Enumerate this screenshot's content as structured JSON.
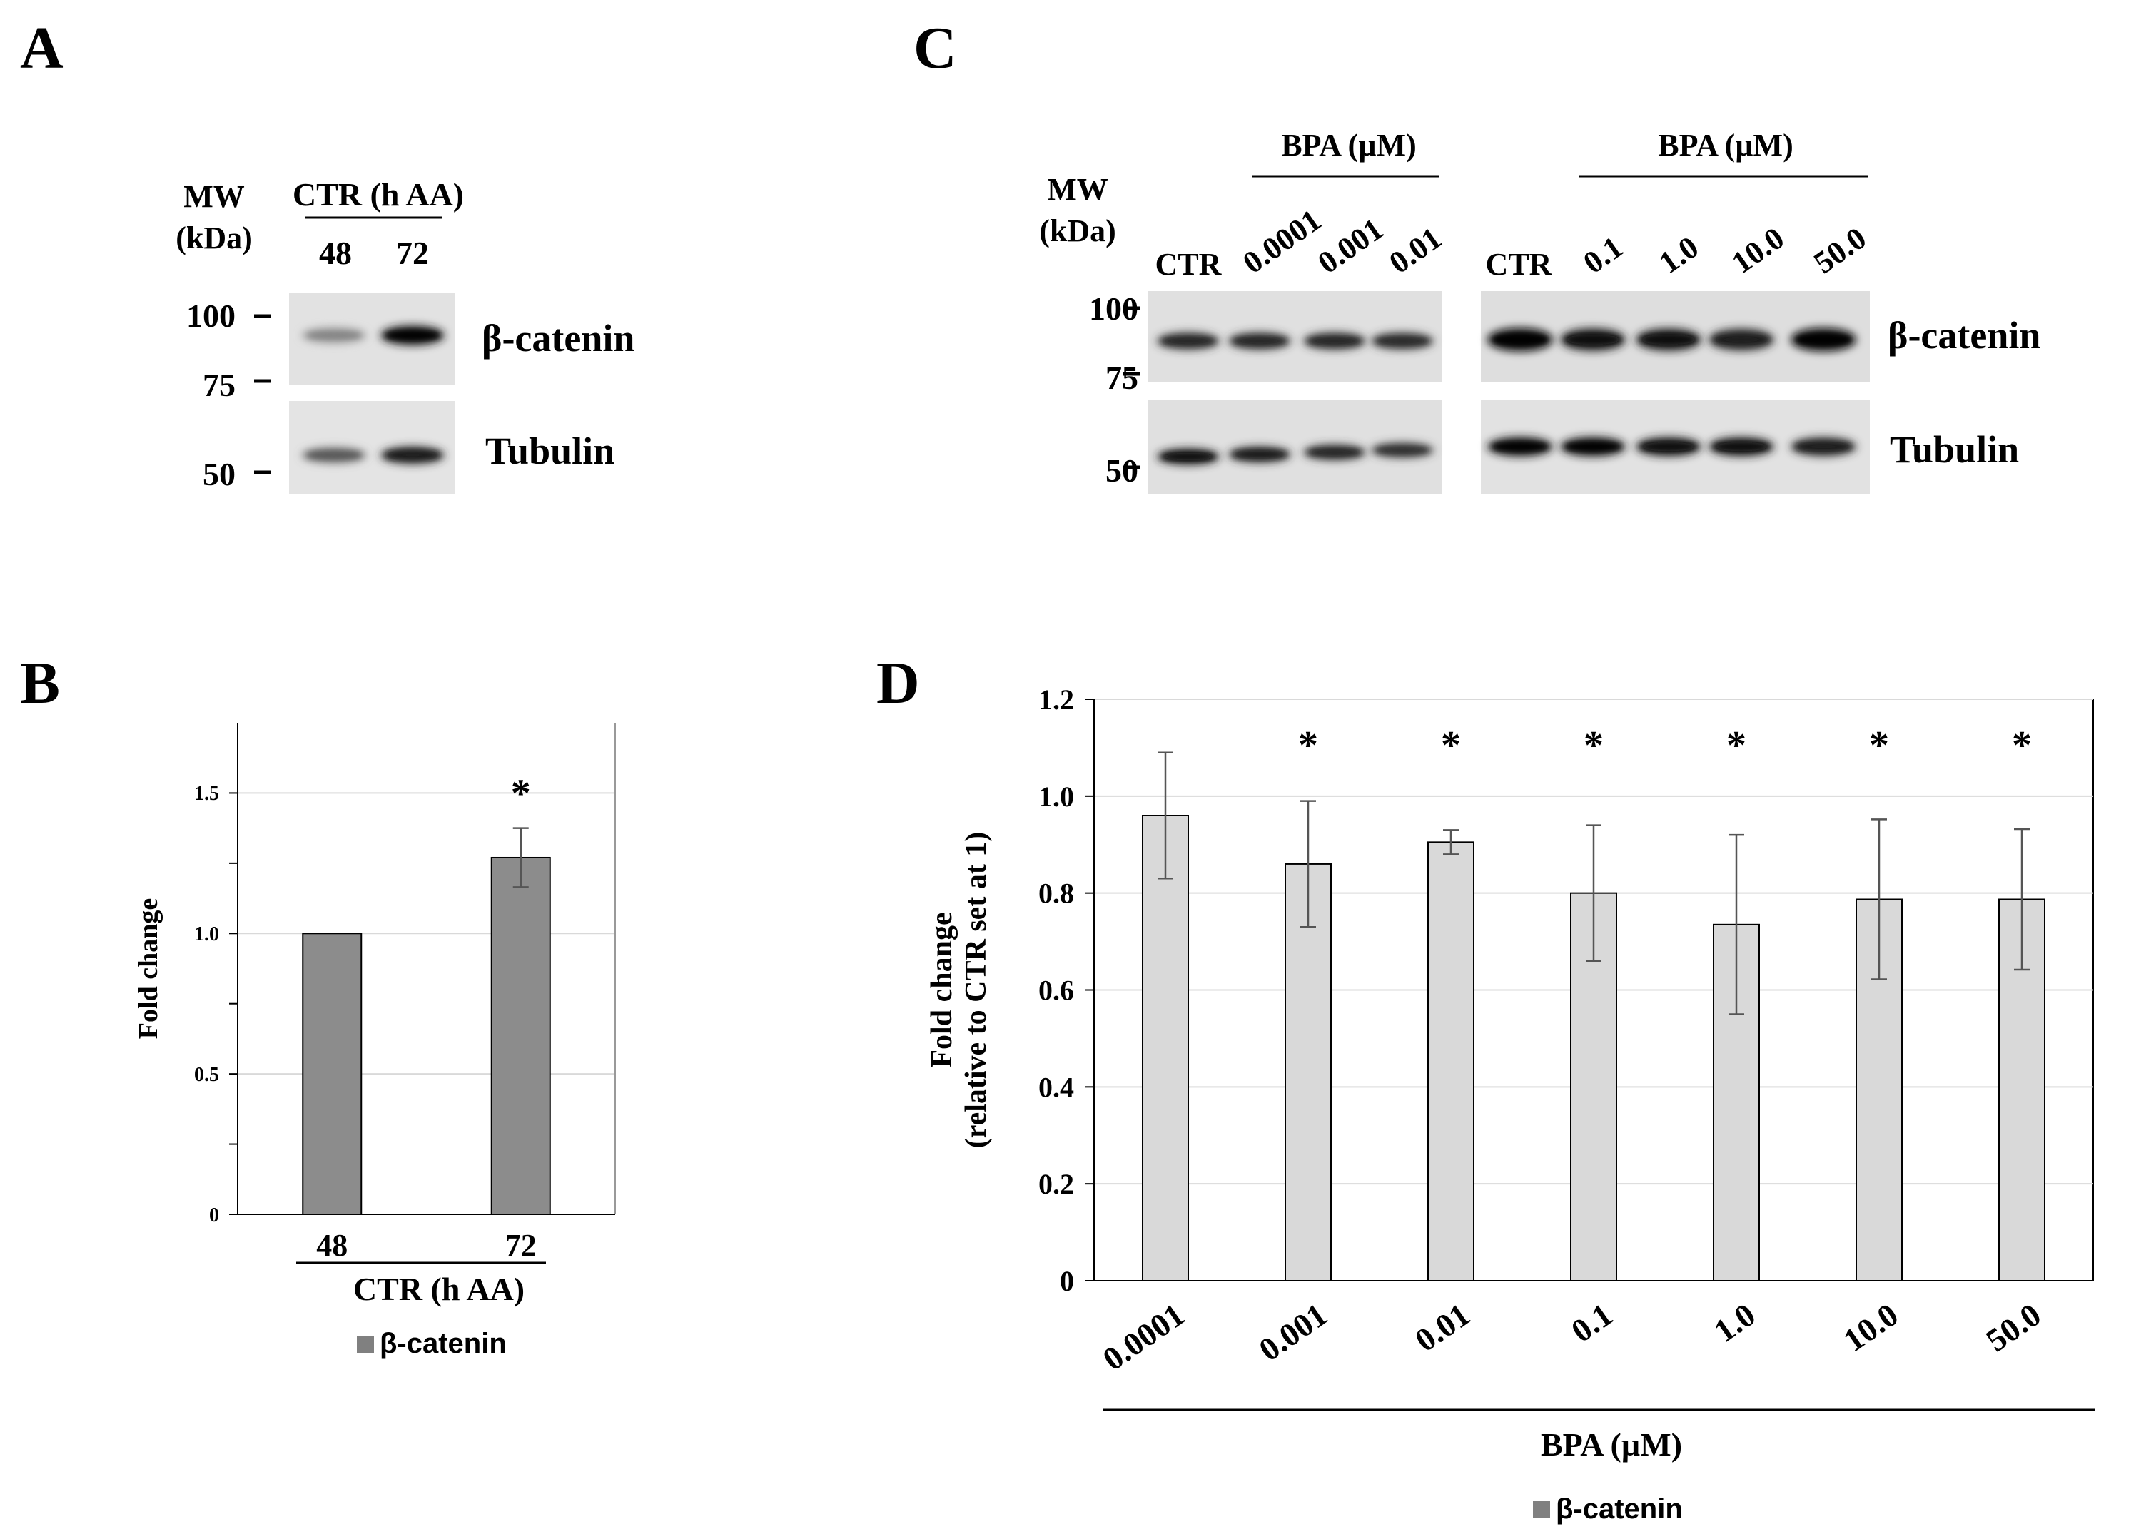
{
  "panels": {
    "A": {
      "label": "A",
      "mw_header": [
        "MW",
        "(kDa)"
      ],
      "group_label": "CTR (h AA)",
      "lanes": [
        "48",
        "72"
      ],
      "mw_markers": [
        "100",
        "75",
        "50"
      ],
      "blots": [
        "β-catenin",
        "Tubulin"
      ],
      "band_intensity": {
        "beta_catenin": [
          0.35,
          0.95
        ],
        "tubulin": [
          0.55,
          0.85
        ]
      }
    },
    "B": {
      "label": "B",
      "legend": "β-catenin",
      "xgroup_label": "CTR (h AA)"
    },
    "C": {
      "label": "C",
      "mw_header": [
        "MW",
        "(kDa)"
      ],
      "group_labels": [
        "BPA (µM)",
        "BPA (µM)"
      ],
      "lanes_left": [
        "CTR",
        "0.0001",
        "0.001",
        "0.01"
      ],
      "lanes_right": [
        "CTR",
        "0.1",
        "1.0",
        "10.0",
        "50.0"
      ],
      "mw_markers": [
        "100",
        "75",
        "50"
      ],
      "blots": [
        "β-catenin",
        "Tubulin"
      ],
      "band_intensity": {
        "beta_catenin_left": [
          0.8,
          0.8,
          0.8,
          0.78
        ],
        "beta_catenin_right": [
          1.0,
          0.92,
          0.9,
          0.85,
          1.0
        ],
        "tubulin_left": [
          0.9,
          0.85,
          0.8,
          0.75
        ],
        "tubulin_right": [
          0.95,
          0.95,
          0.9,
          0.9,
          0.85
        ]
      }
    },
    "D": {
      "label": "D",
      "legend": "β-catenin",
      "xgroup_label": "BPA (µM)"
    }
  },
  "chart_data": [
    {
      "panel": "B",
      "type": "bar",
      "categories": [
        "48",
        "72"
      ],
      "values": [
        1.0,
        1.27
      ],
      "errors": [
        0,
        0.105
      ],
      "significance": [
        "",
        "*"
      ],
      "ylabel": "Fold change",
      "xlabel": "CTR (h AA)",
      "ylim": [
        0,
        1.75
      ],
      "yticks": [
        "0",
        "0.5",
        "1.0",
        "1.5"
      ],
      "grid": true,
      "legend": "bottom",
      "series": [
        {
          "name": "β-catenin",
          "color": "#8c8c8c"
        }
      ]
    },
    {
      "panel": "D",
      "type": "bar",
      "categories": [
        "0.0001",
        "0.001",
        "0.01",
        "0.1",
        "1.0",
        "10.0",
        "50.0"
      ],
      "values": [
        0.96,
        0.86,
        0.905,
        0.8,
        0.735,
        0.787,
        0.787
      ],
      "errors": [
        0.13,
        0.13,
        0.025,
        0.14,
        0.185,
        0.165,
        0.145
      ],
      "significance": [
        "",
        "*",
        "*",
        "*",
        "*",
        "*",
        "*"
      ],
      "ylabel": "Fold change\n(relative to CTR set at 1)",
      "xlabel": "BPA (µM)",
      "ylim": [
        0,
        1.2
      ],
      "yticks": [
        "0",
        "0.2",
        "0.4",
        "0.6",
        "0.8",
        "1.0",
        "1.2"
      ],
      "grid": true,
      "legend": "bottom",
      "series": [
        {
          "name": "β-catenin",
          "color": "#d9d9d9"
        }
      ]
    }
  ],
  "colors": {
    "barB": "#8c8c8c",
    "barD": "#d9d9d9",
    "legendSwatch": "#808080",
    "grid": "#d9d9d9"
  }
}
